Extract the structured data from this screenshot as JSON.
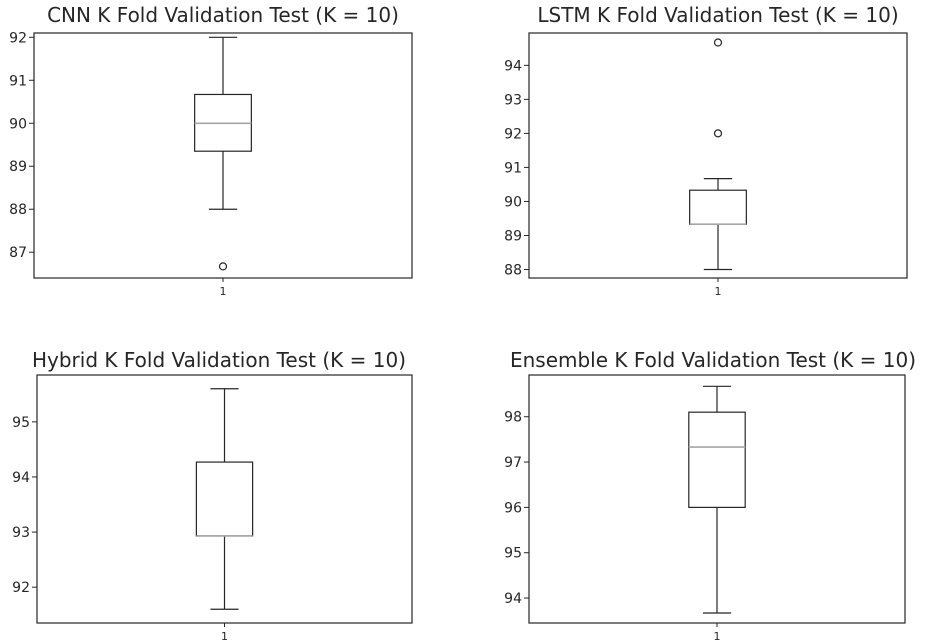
{
  "chart_data": [
    {
      "type": "boxplot",
      "title": "CNN K Fold Validation Test (K = 10)",
      "categories": [
        "1"
      ],
      "ylim": [
        86.4,
        92.1
      ],
      "yticks": [
        87,
        88,
        89,
        90,
        91,
        92
      ],
      "box": {
        "whislo": 88.0,
        "q1": 89.35,
        "med": 90.0,
        "q3": 90.67,
        "whishi": 92.0,
        "fliers": [
          86.67
        ]
      },
      "grid": false
    },
    {
      "type": "boxplot",
      "title": "LSTM K Fold Validation Test (K = 10)",
      "categories": [
        "1"
      ],
      "ylim": [
        87.75,
        94.95
      ],
      "yticks": [
        88,
        89,
        90,
        91,
        92,
        93,
        94
      ],
      "box": {
        "whislo": 88.0,
        "q1": 89.33,
        "med": 89.33,
        "q3": 90.33,
        "whishi": 90.67,
        "fliers": [
          92.0,
          94.67
        ]
      },
      "grid": false
    },
    {
      "type": "boxplot",
      "title": "Hybrid K Fold Validation Test (K = 10)",
      "categories": [
        "1"
      ],
      "ylim": [
        91.35,
        95.85
      ],
      "yticks": [
        92,
        93,
        94,
        95
      ],
      "box": {
        "whislo": 91.6,
        "q1": 92.93,
        "med": 92.93,
        "q3": 94.27,
        "whishi": 95.6,
        "fliers": []
      },
      "grid": false
    },
    {
      "type": "boxplot",
      "title": "Ensemble K Fold Validation Test (K = 10)",
      "categories": [
        "1"
      ],
      "ylim": [
        93.45,
        98.92
      ],
      "yticks": [
        94,
        95,
        96,
        97,
        98
      ],
      "box": {
        "whislo": 93.67,
        "q1": 96.0,
        "med": 97.33,
        "q3": 98.1,
        "whishi": 98.67,
        "fliers": []
      },
      "grid": false
    }
  ]
}
